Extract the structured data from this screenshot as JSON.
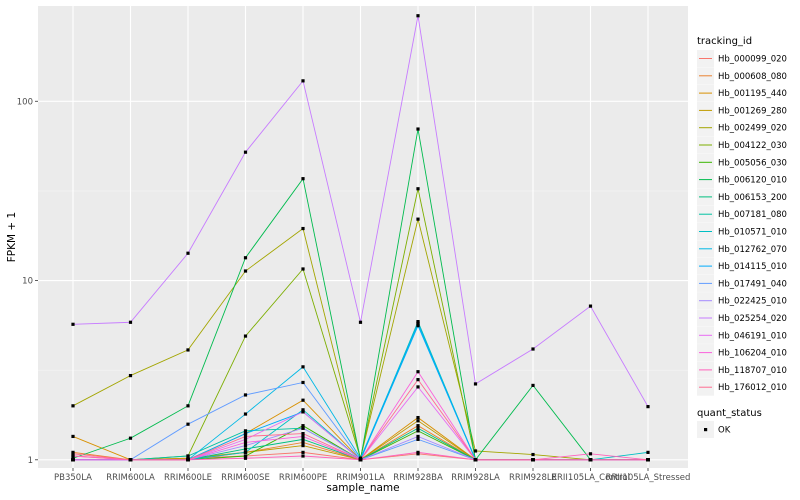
{
  "chart_data": {
    "type": "line",
    "xlabel": "sample_name",
    "ylabel": "FPKM + 1",
    "y_scale": "log10",
    "ylim": [
      0.9,
      340
    ],
    "y_ticks": [
      1,
      10,
      100
    ],
    "y_tick_labels": [
      "1",
      "10",
      "100"
    ],
    "grid": true,
    "legend_position": "right",
    "categories": [
      "PB350LA",
      "RRIM600LA",
      "RRIM600LE",
      "RRIM600SE",
      "RRIM600PE",
      "RRIM901LA",
      "RRIM928BA",
      "RRIM928LA",
      "RRIM928LE",
      "RRII105LA_Control",
      "RRII105LA_Stressed"
    ],
    "series": [
      {
        "name": "Hb_000099_020",
        "color": "#F8766D",
        "values": [
          1.05,
          1.0,
          1.02,
          1.05,
          1.1,
          1.0,
          1.08,
          1.0,
          1.0,
          1.0,
          1.0
        ]
      },
      {
        "name": "Hb_000608_080",
        "color": "#EA8331",
        "values": [
          1.1,
          1.0,
          1.0,
          1.1,
          1.25,
          1.0,
          1.55,
          1.0,
          1.0,
          1.0,
          1.0
        ]
      },
      {
        "name": "Hb_001195_440",
        "color": "#D89000",
        "values": [
          1.35,
          1.0,
          1.0,
          1.4,
          2.15,
          1.0,
          1.72,
          1.0,
          1.0,
          1.0,
          1.0
        ]
      },
      {
        "name": "Hb_001269_280",
        "color": "#C09B00",
        "values": [
          1.0,
          1.0,
          1.02,
          1.1,
          1.2,
          1.0,
          1.65,
          1.0,
          1.0,
          1.0,
          1.0
        ]
      },
      {
        "name": "Hb_002499_020",
        "color": "#A3A500",
        "values": [
          2.0,
          2.95,
          4.1,
          11.3,
          19.5,
          1.02,
          22.0,
          1.12,
          1.07,
          1.0,
          1.0
        ]
      },
      {
        "name": "Hb_004122_030",
        "color": "#7CAE00",
        "values": [
          1.0,
          1.0,
          1.05,
          4.9,
          11.6,
          1.02,
          32.5,
          1.0,
          1.0,
          1.0,
          1.0
        ]
      },
      {
        "name": "Hb_005056_030",
        "color": "#39B600",
        "values": [
          1.0,
          1.0,
          1.0,
          1.05,
          1.55,
          1.0,
          1.45,
          1.0,
          1.0,
          1.0,
          1.0
        ]
      },
      {
        "name": "Hb_006120_010",
        "color": "#00BB4E",
        "values": [
          1.02,
          1.32,
          2.0,
          13.4,
          37.0,
          1.0,
          70.0,
          1.0,
          2.6,
          1.0,
          1.0
        ]
      },
      {
        "name": "Hb_006153_200",
        "color": "#00BF7D",
        "values": [
          1.0,
          1.0,
          1.0,
          1.15,
          1.3,
          1.0,
          1.5,
          1.0,
          1.0,
          1.0,
          1.0
        ]
      },
      {
        "name": "Hb_007181_080",
        "color": "#00C1A3",
        "values": [
          1.0,
          1.0,
          1.05,
          1.45,
          1.5,
          1.0,
          5.9,
          1.0,
          1.0,
          1.0,
          1.0
        ]
      },
      {
        "name": "Hb_010571_010",
        "color": "#00BFC4",
        "values": [
          1.0,
          1.0,
          1.0,
          1.1,
          1.9,
          1.0,
          5.75,
          1.0,
          1.0,
          1.0,
          1.1
        ]
      },
      {
        "name": "Hb_012762_070",
        "color": "#00B8E5",
        "values": [
          1.0,
          1.0,
          1.0,
          1.8,
          3.3,
          1.02,
          5.8,
          1.0,
          1.0,
          1.0,
          1.0
        ]
      },
      {
        "name": "Hb_014115_010",
        "color": "#00ABFD",
        "values": [
          1.0,
          1.0,
          1.0,
          1.4,
          1.85,
          1.0,
          5.6,
          1.0,
          1.0,
          1.0,
          1.0
        ]
      },
      {
        "name": "Hb_017491_040",
        "color": "#619CFF",
        "values": [
          1.0,
          1.0,
          1.58,
          2.3,
          2.7,
          1.0,
          1.3,
          1.0,
          1.0,
          1.0,
          1.0
        ]
      },
      {
        "name": "Hb_022425_010",
        "color": "#A58AFF",
        "values": [
          1.0,
          1.0,
          1.0,
          1.2,
          1.5,
          1.0,
          1.35,
          1.0,
          1.0,
          1.0,
          1.0
        ]
      },
      {
        "name": "Hb_025254_020",
        "color": "#C77CFF",
        "values": [
          5.7,
          5.85,
          14.2,
          52.0,
          130.0,
          5.85,
          300.0,
          2.65,
          4.15,
          7.2,
          1.98
        ]
      },
      {
        "name": "Hb_046191_010",
        "color": "#E76BF3",
        "values": [
          1.0,
          1.0,
          1.0,
          1.3,
          1.85,
          1.0,
          2.55,
          1.0,
          1.0,
          1.0,
          1.0
        ]
      },
      {
        "name": "Hb_106204_010",
        "color": "#FA62DB",
        "values": [
          1.0,
          1.0,
          1.0,
          1.25,
          1.35,
          1.0,
          3.1,
          1.0,
          1.0,
          1.0,
          1.0
        ]
      },
      {
        "name": "Hb_118707_010",
        "color": "#FF62BC",
        "values": [
          1.05,
          1.0,
          1.0,
          1.02,
          1.05,
          1.0,
          1.1,
          1.0,
          1.0,
          1.08,
          1.0
        ]
      },
      {
        "name": "Hb_176012_010",
        "color": "#FF6C91",
        "values": [
          1.08,
          1.0,
          1.0,
          1.35,
          1.4,
          1.0,
          2.8,
          1.0,
          1.0,
          1.0,
          1.0
        ]
      }
    ],
    "legend_title": "tracking_id",
    "status_legend_title": "quant_status",
    "status_legend_items": [
      "OK"
    ]
  },
  "colors": {
    "panel_background": "#EBEBEB",
    "grid_major": "#FFFFFF",
    "point": "#000000"
  }
}
